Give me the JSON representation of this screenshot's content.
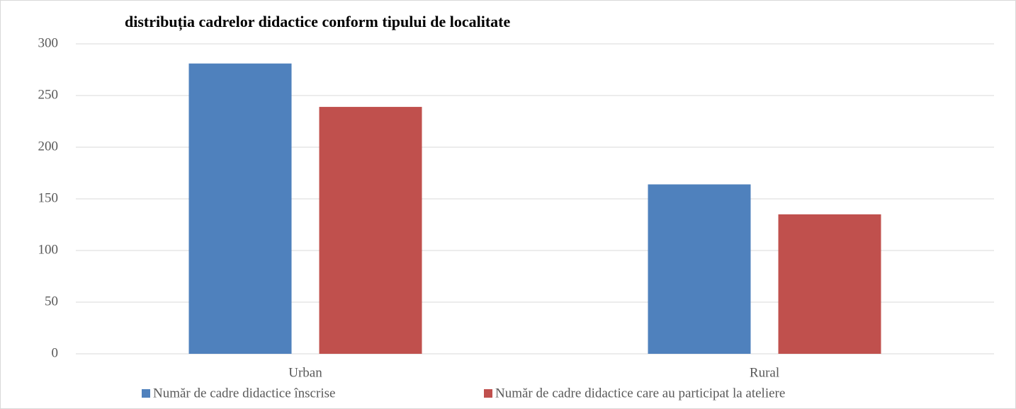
{
  "chart_data": {
    "type": "bar",
    "title": "distribuția cadrelor didactice conform tipului de localitate",
    "categories": [
      "Urban",
      "Rural"
    ],
    "series": [
      {
        "name": "Număr de cadre didactice înscrise",
        "color": "#4f81bd",
        "values": [
          281,
          164
        ]
      },
      {
        "name": "Număr de cadre didactice care au participat la ateliere",
        "color": "#c0504d",
        "values": [
          239,
          135
        ]
      }
    ],
    "ylim": [
      0,
      300
    ],
    "yticks": [
      0,
      50,
      100,
      150,
      200,
      250,
      300
    ],
    "grid": true,
    "legend": "bottom"
  }
}
